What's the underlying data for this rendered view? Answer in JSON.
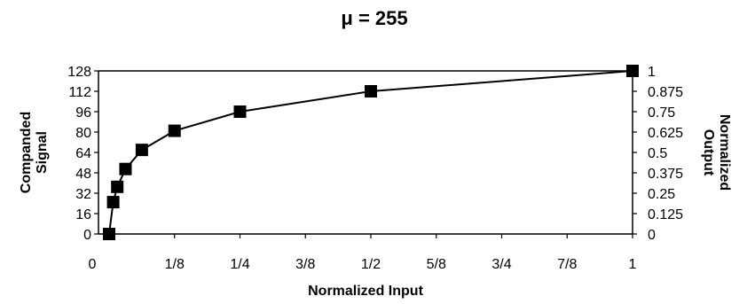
{
  "chart_data": {
    "type": "line",
    "title": "μ = 255",
    "xlabel": "Normalized Input",
    "ylabel_left": [
      "Companded",
      "Signal"
    ],
    "ylabel_right": [
      "Normalized",
      "Output"
    ],
    "x_ticks": [
      "0",
      "1/8",
      "1/4",
      "3/8",
      "1/2",
      "5/8",
      "3/4",
      "7/8",
      "1"
    ],
    "x_tick_values": [
      0,
      0.125,
      0.25,
      0.375,
      0.5,
      0.625,
      0.75,
      0.875,
      1
    ],
    "y_left_ticks": [
      "0",
      "16",
      "32",
      "48",
      "64",
      "80",
      "96",
      "112",
      "128"
    ],
    "y_left_tick_values": [
      0,
      16,
      32,
      48,
      64,
      80,
      96,
      112,
      128
    ],
    "y_right_ticks": [
      "0",
      "0.125",
      "0.25",
      "0.375",
      "0.5",
      "0.625",
      "0.75",
      "0.875",
      "1"
    ],
    "xlim": [
      0,
      1
    ],
    "ylim": [
      0,
      128
    ],
    "grid": false,
    "marker": "square",
    "series": [
      {
        "x": [
          0.0,
          0.0078,
          0.0156,
          0.0313,
          0.0625,
          0.125,
          0.25,
          0.5,
          1.0
        ],
        "y": [
          0,
          25,
          37,
          51,
          66,
          81,
          96,
          112,
          128
        ]
      }
    ]
  }
}
